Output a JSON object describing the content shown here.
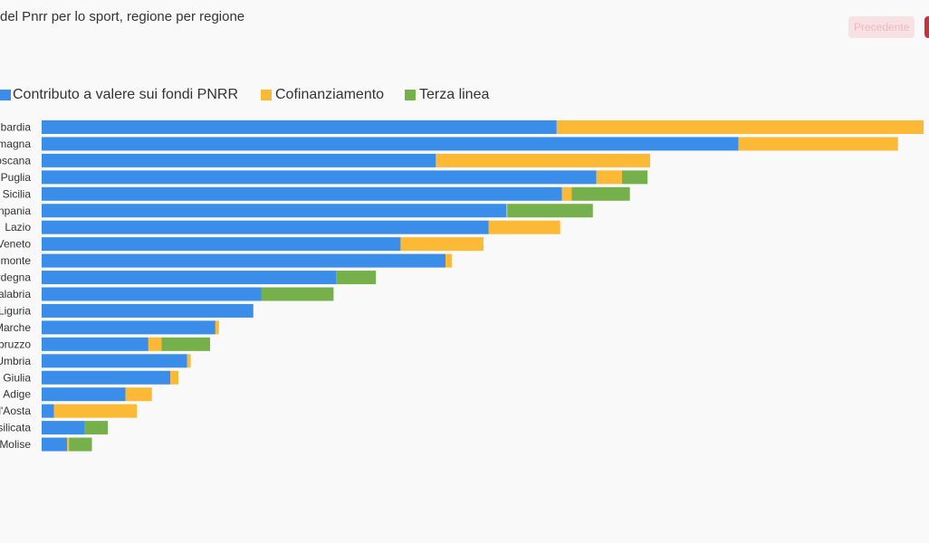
{
  "title": "del Pnrr per lo sport, regione per regione",
  "nav": {
    "prev_label": "Precedente",
    "next_label": ""
  },
  "colors": {
    "pnrr": "#3a8eea",
    "cofin": "#fcb935",
    "terza": "#76b04a"
  },
  "chart_data": {
    "type": "bar",
    "orientation": "horizontal",
    "stacked": true,
    "title": "",
    "xlabel": "",
    "ylabel": "",
    "xlim": [
      0,
      100
    ],
    "grid": false,
    "legend": "top-left",
    "categories": [
      "bardia",
      "magna",
      "oscana",
      "Puglia",
      "Sicilia",
      "npania",
      "Lazio",
      "Veneto",
      "monte",
      "rdegna",
      "alabria",
      "Liguria",
      "Marche",
      "bruzzo",
      "Umbria",
      "Giulia",
      "Adige",
      "d'Aosta",
      "silicata",
      "Molise"
    ],
    "series": [
      {
        "name": "Contributo a valere sui fondi PNRR",
        "color": "#3a8eea",
        "values": [
          58.4,
          79.0,
          44.7,
          62.9,
          59.0,
          52.7,
          50.7,
          40.7,
          45.8,
          33.4,
          24.9,
          24.0,
          19.7,
          12.1,
          16.5,
          14.6,
          9.5,
          1.4,
          4.9,
          2.9
        ]
      },
      {
        "name": "Cofinanziamento",
        "color": "#fcb935",
        "values": [
          41.6,
          18.1,
          24.3,
          2.9,
          1.1,
          0.1,
          8.1,
          9.4,
          0.7,
          0.0,
          0.0,
          0.0,
          0.4,
          1.5,
          0.4,
          0.9,
          3.0,
          9.4,
          0.0,
          0.2
        ]
      },
      {
        "name": "Terza linea",
        "color": "#76b04a",
        "values": [
          0.0,
          0.0,
          0.0,
          2.9,
          6.6,
          9.7,
          0.0,
          0.0,
          0.0,
          4.5,
          8.2,
          0.0,
          0.0,
          5.5,
          0.0,
          0.0,
          0.0,
          0.0,
          2.6,
          2.6
        ]
      }
    ]
  }
}
